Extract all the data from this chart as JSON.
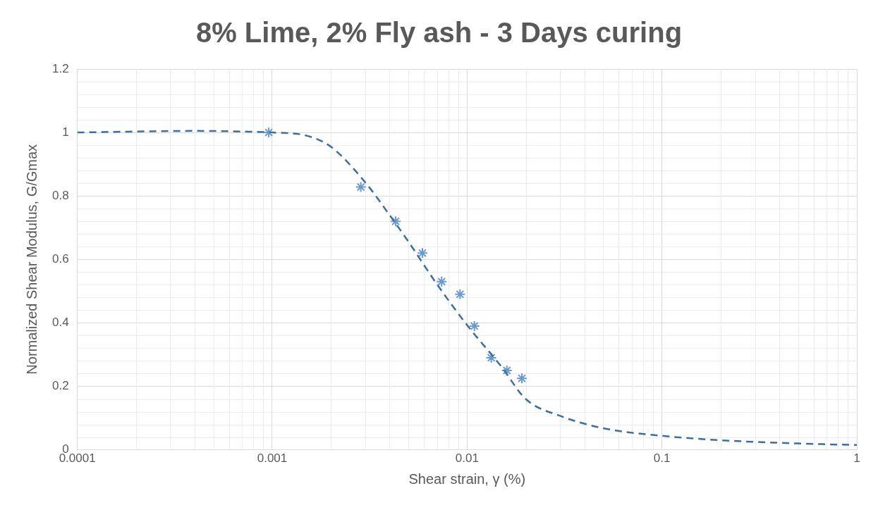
{
  "chart_data": {
    "type": "scatter",
    "title": "8% Lime, 2% Fly ash - 3 Days curing",
    "xlabel": "Shear strain, γ (%)",
    "ylabel": "Normalized Shear Modulus, G/Gmax",
    "log": "x",
    "grid": true,
    "legend": false,
    "xlim": [
      0.0001,
      1
    ],
    "xticks": [
      0.0001,
      0.001,
      0.01,
      0.1,
      1
    ],
    "ylim": [
      0,
      1.2
    ],
    "yticks": [
      0,
      0.2,
      0.4,
      0.6,
      0.8,
      1,
      1.2
    ],
    "series": [
      {
        "type": "line",
        "color": "#3b6fa0",
        "marker": "none",
        "line_style": "dashed",
        "x": [
          0.0001,
          0.0002,
          0.0004,
          0.0007,
          0.001,
          0.0015,
          0.002,
          0.003,
          0.004,
          0.005,
          0.007,
          0.01,
          0.015,
          0.02,
          0.03,
          0.05,
          0.1,
          0.2,
          0.5,
          1
        ],
        "values": [
          1.0,
          1.003,
          1.005,
          1.003,
          1.0,
          0.99,
          0.955,
          0.843,
          0.74,
          0.656,
          0.522,
          0.393,
          0.262,
          0.16,
          0.107,
          0.068,
          0.044,
          0.03,
          0.02,
          0.015
        ]
      },
      {
        "color": "#6a9bd0",
        "marker": "cross",
        "x": [
          0.00096,
          0.00285,
          0.0043,
          0.0059,
          0.0074,
          0.0092,
          0.0109,
          0.0133,
          0.016,
          0.0191
        ],
        "values": [
          1.0,
          0.828,
          0.72,
          0.62,
          0.53,
          0.49,
          0.39,
          0.29,
          0.25,
          0.225
        ]
      }
    ]
  }
}
